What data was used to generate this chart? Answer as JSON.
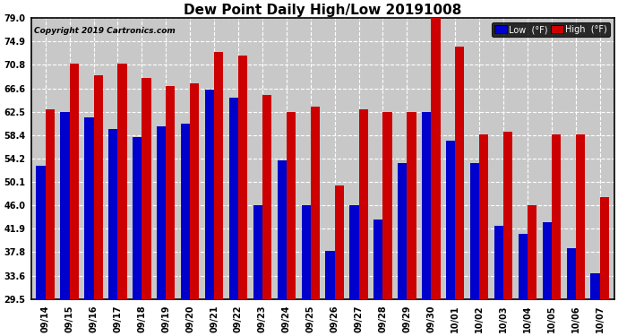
{
  "title": "Dew Point Daily High/Low 20191008",
  "copyright": "Copyright 2019 Cartronics.com",
  "dates": [
    "09/14",
    "09/15",
    "09/16",
    "09/17",
    "09/18",
    "09/19",
    "09/20",
    "09/21",
    "09/22",
    "09/23",
    "09/24",
    "09/25",
    "09/26",
    "09/27",
    "09/28",
    "09/29",
    "09/30",
    "10/01",
    "10/02",
    "10/03",
    "10/04",
    "10/05",
    "10/06",
    "10/07"
  ],
  "low_values": [
    53.0,
    62.5,
    61.5,
    59.5,
    58.0,
    60.0,
    60.5,
    66.5,
    65.0,
    46.0,
    54.0,
    46.0,
    38.0,
    46.0,
    43.5,
    53.5,
    62.5,
    57.5,
    53.5,
    42.5,
    41.0,
    43.0,
    38.5,
    34.0
  ],
  "high_values": [
    63.0,
    71.0,
    69.0,
    71.0,
    68.5,
    67.0,
    67.5,
    73.0,
    72.5,
    65.5,
    62.5,
    63.5,
    49.5,
    63.0,
    62.5,
    62.5,
    79.0,
    74.0,
    58.5,
    59.0,
    46.0,
    58.5,
    58.5,
    47.5
  ],
  "low_color": "#0000cc",
  "high_color": "#cc0000",
  "ylim_min": 29.5,
  "ylim_max": 79.0,
  "yticks": [
    29.5,
    33.6,
    37.8,
    41.9,
    46.0,
    50.1,
    54.2,
    58.4,
    62.5,
    66.6,
    70.8,
    74.9,
    79.0
  ],
  "bg_color": "#ffffff",
  "plot_bg_color": "#c8c8c8",
  "grid_color": "#ffffff",
  "bar_width": 0.38,
  "legend_low_label": "Low  (°F)",
  "legend_high_label": "High  (°F)",
  "figwidth": 6.9,
  "figheight": 3.75,
  "dpi": 100
}
